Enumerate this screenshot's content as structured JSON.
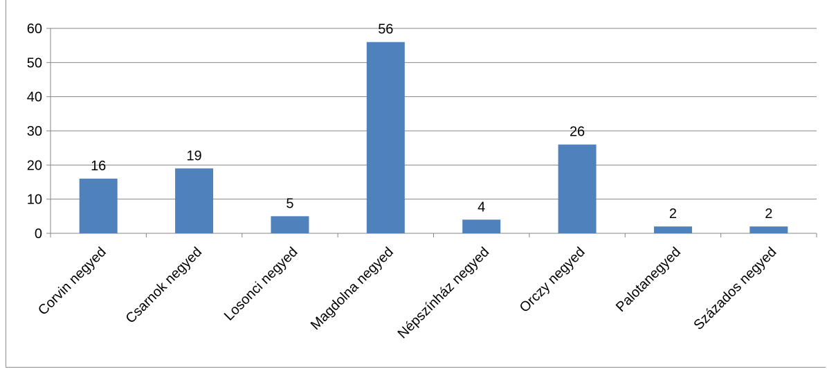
{
  "chart_data": {
    "type": "bar",
    "categories": [
      "Corvin negyed",
      "Csarnok negyed",
      "Losonci negyed",
      "Magdolna negyed",
      "Népszínház negyed",
      "Orczy negyed",
      "Palotanegyed",
      "Százados negyed"
    ],
    "values": [
      16,
      19,
      5,
      56,
      4,
      26,
      2,
      2
    ],
    "data_labels": [
      "16",
      "19",
      "5",
      "56",
      "4",
      "26",
      "2",
      "2"
    ],
    "yticks": [
      "0",
      "10",
      "20",
      "30",
      "40",
      "50",
      "60"
    ],
    "ylim": [
      0,
      60
    ],
    "grid": true,
    "legend": "none",
    "colors": {
      "bar": "#4f81bd",
      "grid": "#868686",
      "axis": "#868686"
    }
  }
}
